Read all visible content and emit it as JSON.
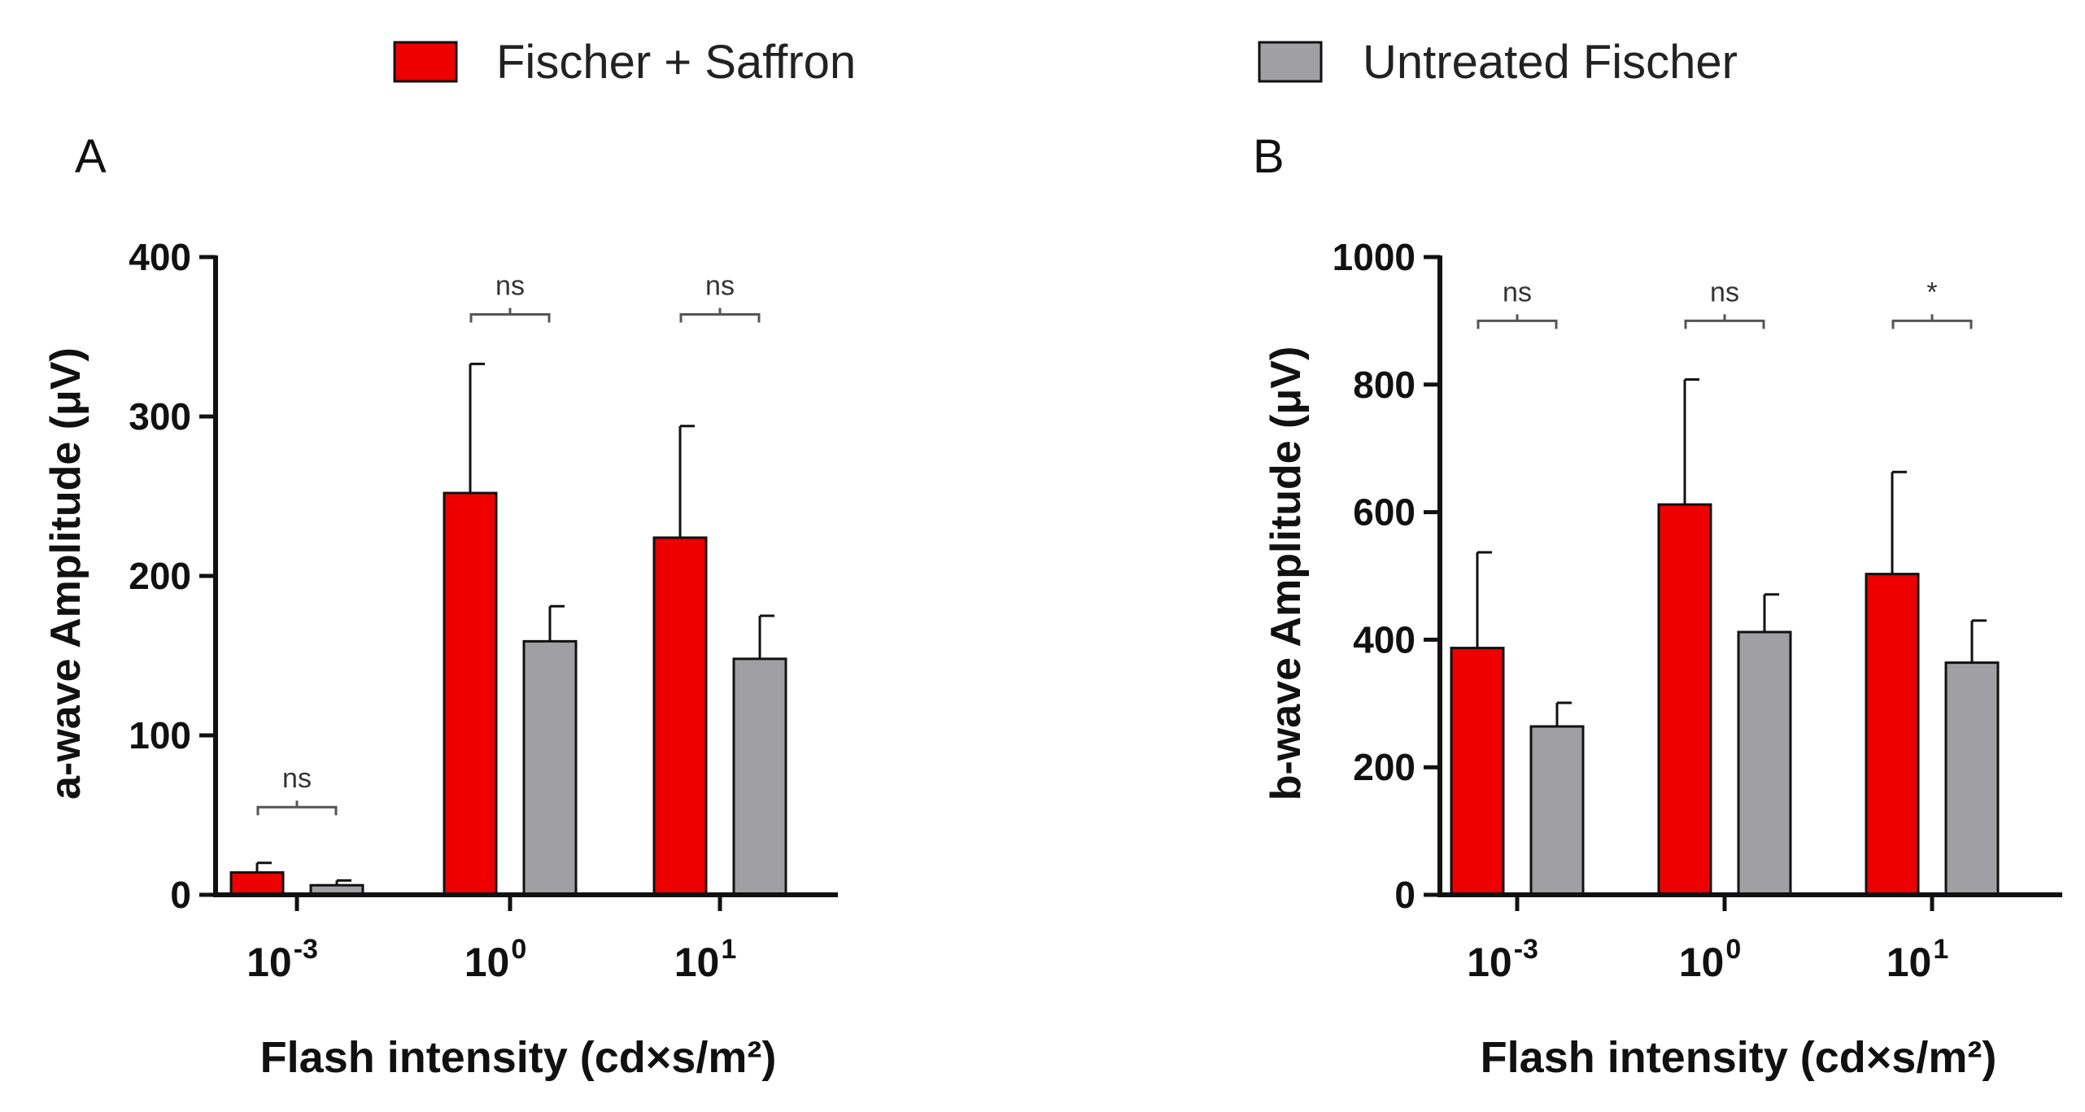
{
  "colors": {
    "saffron": "#ee0000",
    "untreated": "#a0a0a4",
    "axis": "#111111",
    "bracket": "#555555"
  },
  "legend": [
    {
      "name": "Fischer + Saffron",
      "color": "#ee0000"
    },
    {
      "name": "Untreated Fischer",
      "color": "#a0a0a4"
    }
  ],
  "chart_data": [
    {
      "panel": "A",
      "type": "bar",
      "ylabel": "a-wave Amplitude (μV)",
      "xlabel": "Flash intensity (cd×s/m²)",
      "ylim": [
        0,
        400
      ],
      "yticks": [
        "0",
        "100",
        "200",
        "300",
        "400"
      ],
      "categories": [
        {
          "base": "10",
          "exp": "-3"
        },
        {
          "base": "10",
          "exp": "0"
        },
        {
          "base": "10",
          "exp": "1"
        }
      ],
      "series": [
        {
          "name": "Fischer + Saffron",
          "values": [
            14,
            252,
            224
          ],
          "errors": [
            6,
            81,
            70
          ]
        },
        {
          "name": "Untreated Fischer",
          "values": [
            6,
            159,
            148
          ],
          "errors": [
            3,
            22,
            27
          ]
        }
      ],
      "significance": [
        "ns",
        "ns",
        "ns"
      ],
      "bracket_y": [
        55,
        364,
        364
      ]
    },
    {
      "panel": "B",
      "type": "bar",
      "ylabel": "b-wave Amplitude (μV)",
      "xlabel": "Flash intensity (cd×s/m²)",
      "ylim": [
        0,
        1000
      ],
      "yticks": [
        "0",
        "200",
        "400",
        "600",
        "800",
        "1000"
      ],
      "categories": [
        {
          "base": "10",
          "exp": "-3"
        },
        {
          "base": "10",
          "exp": "0"
        },
        {
          "base": "10",
          "exp": "1"
        }
      ],
      "series": [
        {
          "name": "Fischer + Saffron",
          "values": [
            387,
            612,
            503
          ],
          "errors": [
            150,
            196,
            160
          ]
        },
        {
          "name": "Untreated Fischer",
          "values": [
            264,
            412,
            364
          ],
          "errors": [
            37,
            59,
            66
          ]
        }
      ],
      "significance": [
        "ns",
        "ns",
        "*"
      ],
      "bracket_y": [
        900,
        900,
        900
      ]
    }
  ]
}
